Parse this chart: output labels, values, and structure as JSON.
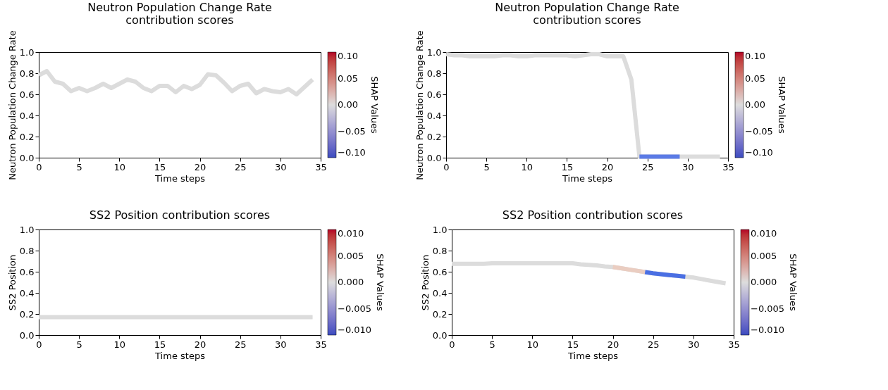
{
  "chart_data": [
    {
      "type": "line",
      "title": "Neutron Population Change Rate\ncontribution scores",
      "xlabel": "Time steps",
      "ylabel": "Neutron Population Change Rate",
      "clabel": "SHAP Values",
      "x": [
        0,
        1,
        2,
        3,
        4,
        5,
        6,
        7,
        8,
        9,
        10,
        11,
        12,
        13,
        14,
        15,
        16,
        17,
        18,
        19,
        20,
        21,
        22,
        23,
        24,
        25,
        26,
        27,
        28,
        29,
        30,
        31,
        32,
        33,
        34
      ],
      "series": [
        {
          "color": "#dcdcdc",
          "values": [
            0.78,
            0.82,
            0.72,
            0.7,
            0.63,
            0.66,
            0.63,
            0.66,
            0.7,
            0.66,
            0.7,
            0.74,
            0.72,
            0.66,
            0.63,
            0.68,
            0.68,
            0.62,
            0.68,
            0.65,
            0.69,
            0.79,
            0.78,
            0.71,
            0.63,
            0.68,
            0.7,
            0.61,
            0.65,
            0.63,
            0.62,
            0.65,
            0.6,
            0.67,
            0.74
          ]
        }
      ],
      "xlim": [
        0,
        35
      ],
      "xticks": [
        0,
        5,
        10,
        15,
        20,
        25,
        30,
        35
      ],
      "ylim": [
        0,
        1
      ],
      "yticks": [
        {
          "value": 0,
          "label": "0.0"
        },
        {
          "value": 0.2,
          "label": "0.2"
        },
        {
          "value": 0.4,
          "label": "0.4"
        },
        {
          "value": 0.6,
          "label": "0.6"
        },
        {
          "value": 0.8,
          "label": "0.8"
        },
        {
          "value": 1,
          "label": "1.0"
        }
      ],
      "clim": [
        -0.1,
        0.1
      ],
      "cticks": [
        {
          "value": -0.1,
          "label": "−0.10"
        },
        {
          "value": -0.05,
          "label": "−0.05"
        },
        {
          "value": 0,
          "label": "0.00"
        },
        {
          "value": 0.05,
          "label": "0.05"
        },
        {
          "value": 0.1,
          "label": "0.10"
        }
      ]
    },
    {
      "type": "line",
      "title": "Neutron Population Change Rate\ncontribution scores",
      "xlabel": "Time steps",
      "ylabel": "Neutron Population Change Rate",
      "clabel": "SHAP Values",
      "x": [
        0,
        1,
        2,
        3,
        4,
        5,
        6,
        7,
        8,
        9,
        10,
        11,
        12,
        13,
        14,
        15,
        16,
        17,
        18,
        19,
        20,
        21,
        22,
        23,
        24,
        25,
        26,
        27,
        28,
        29,
        30,
        31,
        32,
        33,
        34
      ],
      "series": [
        {
          "color": "#dcdcdc",
          "values": [
            0.98,
            0.97,
            0.97,
            0.96,
            0.96,
            0.96,
            0.96,
            0.97,
            0.97,
            0.96,
            0.96,
            0.97,
            0.97,
            0.97,
            0.97,
            0.97,
            0.96,
            0.97,
            0.98,
            0.98,
            0.96,
            0.96,
            0.96,
            0.74,
            0.01,
            0.01,
            0.01,
            0.01,
            0.01,
            0.01,
            0.01,
            0.01,
            0.01,
            0.01,
            0.01
          ]
        },
        {
          "x": [
            24,
            25,
            26,
            27,
            28,
            29
          ],
          "values": [
            0.01,
            0.01,
            0.01,
            0.01,
            0.01,
            0.01
          ],
          "color": "#5b7be6"
        }
      ],
      "xlim": [
        0,
        35
      ],
      "xticks": [
        0,
        5,
        10,
        15,
        20,
        25,
        30,
        35
      ],
      "ylim": [
        0,
        1
      ],
      "yticks": [
        {
          "value": 0,
          "label": "0.0"
        },
        {
          "value": 0.2,
          "label": "0.2"
        },
        {
          "value": 0.4,
          "label": "0.4"
        },
        {
          "value": 0.6,
          "label": "0.6"
        },
        {
          "value": 0.8,
          "label": "0.8"
        },
        {
          "value": 1,
          "label": "1.0"
        }
      ],
      "clim": [
        -0.1,
        0.1
      ],
      "cticks": [
        {
          "value": -0.1,
          "label": "−0.10"
        },
        {
          "value": -0.05,
          "label": "−0.05"
        },
        {
          "value": 0,
          "label": "0.00"
        },
        {
          "value": 0.05,
          "label": "0.05"
        },
        {
          "value": 0.1,
          "label": "0.10"
        }
      ]
    },
    {
      "type": "line",
      "title": "SS2 Position contribution scores",
      "xlabel": "Time steps",
      "ylabel": "SS2 Position",
      "clabel": "SHAP Values",
      "x": [
        0,
        1,
        2,
        3,
        4,
        5,
        6,
        7,
        8,
        9,
        10,
        11,
        12,
        13,
        14,
        15,
        16,
        17,
        18,
        19,
        20,
        21,
        22,
        23,
        24,
        25,
        26,
        27,
        28,
        29,
        30,
        31,
        32,
        33,
        34
      ],
      "series": [
        {
          "color": "#dcdcdc",
          "values": [
            0.17,
            0.17,
            0.17,
            0.17,
            0.17,
            0.17,
            0.17,
            0.17,
            0.17,
            0.17,
            0.17,
            0.17,
            0.17,
            0.17,
            0.17,
            0.17,
            0.17,
            0.17,
            0.17,
            0.17,
            0.17,
            0.17,
            0.17,
            0.17,
            0.17,
            0.17,
            0.17,
            0.17,
            0.17,
            0.17,
            0.17,
            0.17,
            0.17,
            0.17,
            0.17
          ]
        }
      ],
      "xlim": [
        0,
        35
      ],
      "xticks": [
        0,
        5,
        10,
        15,
        20,
        25,
        30,
        35
      ],
      "ylim": [
        0,
        1
      ],
      "yticks": [
        {
          "value": 0,
          "label": "0.0"
        },
        {
          "value": 0.2,
          "label": "0.2"
        },
        {
          "value": 0.4,
          "label": "0.4"
        },
        {
          "value": 0.6,
          "label": "0.6"
        },
        {
          "value": 0.8,
          "label": "0.8"
        },
        {
          "value": 1,
          "label": "1.0"
        }
      ],
      "clim": [
        -0.01,
        0.01
      ],
      "cticks": [
        {
          "value": -0.01,
          "label": "−0.010"
        },
        {
          "value": -0.005,
          "label": "−0.005"
        },
        {
          "value": 0,
          "label": "0.000"
        },
        {
          "value": 0.005,
          "label": "0.005"
        },
        {
          "value": 0.01,
          "label": "0.010"
        }
      ]
    },
    {
      "type": "line",
      "title": "SS2 Position contribution scores",
      "xlabel": "Time steps",
      "ylabel": "SS2 Position",
      "clabel": "SHAP Values",
      "x": [
        0,
        1,
        2,
        3,
        4,
        5,
        6,
        7,
        8,
        9,
        10,
        11,
        12,
        13,
        14,
        15,
        16,
        17,
        18,
        19,
        20,
        21,
        22,
        23,
        24,
        25,
        26,
        27,
        28,
        29,
        30,
        31,
        32,
        33,
        34
      ],
      "series": [
        {
          "color": "#dcdcdc",
          "values": [
            0.675,
            0.675,
            0.675,
            0.675,
            0.675,
            0.68,
            0.68,
            0.68,
            0.68,
            0.68,
            0.68,
            0.68,
            0.68,
            0.68,
            0.68,
            0.68,
            0.67,
            0.665,
            0.66,
            0.65,
            0.645,
            0.633,
            0.621,
            0.609,
            0.597,
            0.585,
            0.577,
            0.569,
            0.561,
            0.553,
            0.545,
            0.531,
            0.517,
            0.503,
            0.49
          ]
        },
        {
          "x": [
            20,
            21,
            22,
            23,
            24
          ],
          "values": [
            0.645,
            0.633,
            0.621,
            0.609,
            0.597
          ],
          "color": "#eacdc1"
        },
        {
          "x": [
            24,
            25,
            26,
            27,
            28,
            29
          ],
          "values": [
            0.597,
            0.585,
            0.577,
            0.569,
            0.561,
            0.553
          ],
          "color": "#4a6fe3"
        }
      ],
      "xlim": [
        0,
        35
      ],
      "xticks": [
        0,
        5,
        10,
        15,
        20,
        25,
        30,
        35
      ],
      "ylim": [
        0,
        1
      ],
      "yticks": [
        {
          "value": 0,
          "label": "0.0"
        },
        {
          "value": 0.2,
          "label": "0.2"
        },
        {
          "value": 0.4,
          "label": "0.4"
        },
        {
          "value": 0.6,
          "label": "0.6"
        },
        {
          "value": 0.8,
          "label": "0.8"
        },
        {
          "value": 1,
          "label": "1.0"
        }
      ],
      "clim": [
        -0.01,
        0.01
      ],
      "cticks": [
        {
          "value": -0.01,
          "label": "−0.010"
        },
        {
          "value": -0.005,
          "label": "−0.005"
        },
        {
          "value": 0,
          "label": "0.000"
        },
        {
          "value": 0.005,
          "label": "0.005"
        },
        {
          "value": 0.01,
          "label": "0.010"
        }
      ]
    }
  ]
}
